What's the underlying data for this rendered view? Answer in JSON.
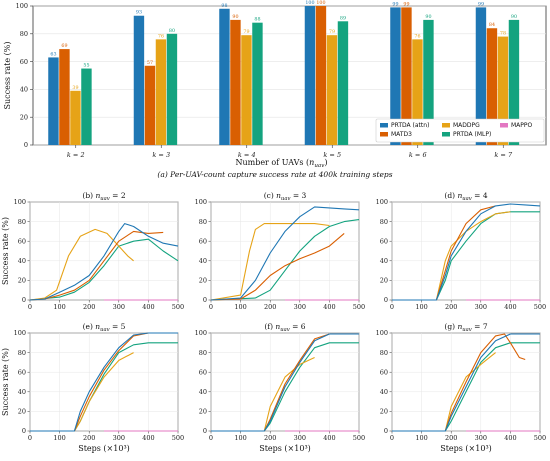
{
  "colors": {
    "PRTDA (attn)": "#1f77b4",
    "MATD3": "#d95f02",
    "MADDPG": "#e6a317",
    "PRTDA (MLP)": "#14a37f",
    "MAPPO": "#e377c2"
  },
  "top_caption": "(a) Per-UAV-count capture success rate at 400k training steps",
  "chart_data": [
    {
      "type": "bar",
      "categories": [
        "k = 2",
        "k = 3",
        "k = 4",
        "k = 5",
        "k = 6",
        "k = 7"
      ],
      "xlabel": "Number of UAVs (n_uav)",
      "ylabel": "Success rate (%)",
      "ylim": [
        0,
        100
      ],
      "yticks": [
        0,
        20,
        40,
        60,
        80,
        100
      ],
      "grid": true,
      "legend_position": "lower-right",
      "series": [
        {
          "name": "PRTDA (attn)",
          "values": [
            63,
            93,
            98,
            100,
            99,
            99
          ]
        },
        {
          "name": "MATD3",
          "values": [
            69,
            57,
            90,
            100,
            99,
            84
          ]
        },
        {
          "name": "MADDPG",
          "values": [
            39,
            76,
            79,
            79,
            76,
            78
          ]
        },
        {
          "name": "PRTDA (MLP)",
          "values": [
            55,
            80,
            88,
            89,
            90,
            90
          ]
        },
        {
          "name": "MAPPO",
          "values": [
            0,
            0,
            0,
            0,
            0,
            0
          ]
        }
      ]
    },
    {
      "type": "line",
      "title": "(b) n_uav = 2",
      "xlim": [
        0,
        500
      ],
      "ylim": [
        0,
        100
      ],
      "xlabel": "",
      "ylabel": "Success rate (%)",
      "series": [
        {
          "name": "PRTDA (attn)",
          "x": [
            0,
            50,
            100,
            150,
            200,
            250,
            300,
            320,
            350,
            400,
            450,
            500
          ],
          "values": [
            0,
            1,
            8,
            15,
            25,
            45,
            70,
            78,
            75,
            65,
            58,
            55
          ]
        },
        {
          "name": "MATD3",
          "x": [
            0,
            50,
            100,
            150,
            200,
            250,
            300,
            350,
            400,
            450
          ],
          "values": [
            0,
            1,
            5,
            10,
            20,
            40,
            60,
            70,
            68,
            69
          ]
        },
        {
          "name": "MADDPG",
          "x": [
            0,
            50,
            90,
            130,
            170,
            220,
            260,
            300,
            330,
            350
          ],
          "values": [
            0,
            2,
            10,
            45,
            65,
            72,
            68,
            55,
            45,
            40
          ]
        },
        {
          "name": "PRTDA (MLP)",
          "x": [
            0,
            100,
            150,
            200,
            250,
            300,
            350,
            400,
            450,
            500
          ],
          "values": [
            0,
            3,
            8,
            18,
            35,
            55,
            60,
            62,
            50,
            40
          ]
        },
        {
          "name": "MAPPO",
          "x": [
            250,
            500
          ],
          "values": [
            0,
            0
          ]
        }
      ]
    },
    {
      "type": "line",
      "title": "(c) n_uav = 3",
      "xlim": [
        0,
        500
      ],
      "ylim": [
        0,
        100
      ],
      "xlabel": "",
      "ylabel": "",
      "series": [
        {
          "name": "PRTDA (attn)",
          "x": [
            0,
            100,
            150,
            200,
            250,
            300,
            350,
            400,
            450,
            500
          ],
          "values": [
            0,
            2,
            20,
            48,
            70,
            85,
            95,
            94,
            93,
            92
          ]
        },
        {
          "name": "MATD3",
          "x": [
            0,
            100,
            150,
            200,
            250,
            300,
            350,
            400,
            450
          ],
          "values": [
            0,
            1,
            10,
            25,
            35,
            42,
            48,
            55,
            68
          ]
        },
        {
          "name": "MADDPG",
          "x": [
            0,
            100,
            130,
            150,
            180,
            220,
            300,
            350,
            400
          ],
          "values": [
            0,
            5,
            50,
            72,
            78,
            78,
            78,
            78,
            76
          ]
        },
        {
          "name": "PRTDA (MLP)",
          "x": [
            0,
            150,
            200,
            250,
            300,
            350,
            400,
            450,
            500
          ],
          "values": [
            0,
            2,
            10,
            30,
            50,
            65,
            75,
            80,
            82
          ]
        },
        {
          "name": "MAPPO",
          "x": [
            250,
            500
          ],
          "values": [
            0,
            0
          ]
        }
      ]
    },
    {
      "type": "line",
      "title": "(d) n_uav = 4",
      "xlim": [
        0,
        500
      ],
      "ylim": [
        0,
        100
      ],
      "xlabel": "",
      "ylabel": "",
      "series": [
        {
          "name": "PRTDA (attn)",
          "x": [
            0,
            150,
            180,
            200,
            250,
            300,
            350,
            400,
            450,
            500
          ],
          "values": [
            0,
            0,
            25,
            45,
            70,
            88,
            96,
            98,
            97,
            96
          ]
        },
        {
          "name": "MATD3",
          "x": [
            0,
            150,
            180,
            200,
            250,
            300,
            350
          ],
          "values": [
            0,
            0,
            30,
            50,
            78,
            92,
            96
          ]
        },
        {
          "name": "MADDPG",
          "x": [
            0,
            150,
            180,
            200,
            250,
            300,
            350,
            400
          ],
          "values": [
            0,
            0,
            40,
            55,
            70,
            80,
            88,
            90
          ]
        },
        {
          "name": "PRTDA (MLP)",
          "x": [
            0,
            150,
            180,
            200,
            250,
            300,
            350,
            400,
            450,
            500
          ],
          "values": [
            0,
            0,
            20,
            40,
            60,
            78,
            88,
            90,
            90,
            90
          ]
        },
        {
          "name": "MAPPO",
          "x": [
            250,
            500
          ],
          "values": [
            0,
            0
          ]
        }
      ]
    },
    {
      "type": "line",
      "title": "(e) n_uav = 5",
      "xlim": [
        0,
        500
      ],
      "ylim": [
        0,
        100
      ],
      "xlabel": "Steps (×10³)",
      "ylabel": "Success rate (%)",
      "series": [
        {
          "name": "PRTDA (attn)",
          "x": [
            0,
            150,
            170,
            200,
            250,
            300,
            350,
            400,
            450,
            500
          ],
          "values": [
            0,
            0,
            20,
            40,
            65,
            85,
            98,
            100,
            100,
            100
          ]
        },
        {
          "name": "MATD3",
          "x": [
            0,
            150,
            170,
            200,
            250,
            300,
            350,
            400
          ],
          "values": [
            0,
            0,
            15,
            35,
            62,
            82,
            97,
            100
          ]
        },
        {
          "name": "MADDPG",
          "x": [
            0,
            150,
            170,
            200,
            250,
            300,
            350
          ],
          "values": [
            0,
            0,
            10,
            30,
            55,
            72,
            80
          ]
        },
        {
          "name": "PRTDA (MLP)",
          "x": [
            0,
            150,
            170,
            200,
            250,
            300,
            350,
            400,
            450,
            500
          ],
          "values": [
            0,
            0,
            10,
            30,
            58,
            80,
            88,
            90,
            90,
            90
          ]
        },
        {
          "name": "MAPPO",
          "x": [
            250,
            500
          ],
          "values": [
            0,
            0
          ]
        }
      ]
    },
    {
      "type": "line",
      "title": "(f) n_uav = 6",
      "xlim": [
        0,
        500
      ],
      "ylim": [
        0,
        100
      ],
      "xlabel": "Steps (×10³)",
      "ylabel": "",
      "series": [
        {
          "name": "PRTDA (attn)",
          "x": [
            0,
            180,
            200,
            250,
            300,
            350,
            400,
            450,
            500
          ],
          "values": [
            0,
            0,
            10,
            45,
            70,
            92,
            99,
            99,
            99
          ]
        },
        {
          "name": "MATD3",
          "x": [
            0,
            180,
            200,
            250,
            300,
            350,
            400
          ],
          "values": [
            0,
            0,
            12,
            48,
            72,
            94,
            99
          ]
        },
        {
          "name": "MADDPG",
          "x": [
            0,
            180,
            200,
            250,
            300,
            350
          ],
          "values": [
            0,
            0,
            25,
            55,
            68,
            75
          ]
        },
        {
          "name": "PRTDA (MLP)",
          "x": [
            0,
            180,
            200,
            250,
            300,
            350,
            400,
            450,
            500
          ],
          "values": [
            0,
            0,
            8,
            40,
            65,
            85,
            90,
            90,
            90
          ]
        },
        {
          "name": "MAPPO",
          "x": [
            250,
            500
          ],
          "values": [
            0,
            0
          ]
        }
      ]
    },
    {
      "type": "line",
      "title": "(g) n_uav = 7",
      "xlim": [
        0,
        500
      ],
      "ylim": [
        0,
        100
      ],
      "xlabel": "Steps (×10³)",
      "ylabel": "",
      "series": [
        {
          "name": "PRTDA (attn)",
          "x": [
            0,
            180,
            200,
            250,
            300,
            350,
            400,
            450,
            500
          ],
          "values": [
            0,
            0,
            15,
            45,
            75,
            92,
            99,
            99,
            99
          ]
        },
        {
          "name": "MATD3",
          "x": [
            0,
            180,
            200,
            250,
            300,
            350,
            380,
            400,
            430,
            450
          ],
          "values": [
            0,
            0,
            18,
            50,
            80,
            97,
            99,
            90,
            75,
            73
          ]
        },
        {
          "name": "MADDPG",
          "x": [
            0,
            180,
            200,
            250,
            300,
            350
          ],
          "values": [
            0,
            0,
            25,
            55,
            68,
            80
          ]
        },
        {
          "name": "PRTDA (MLP)",
          "x": [
            0,
            180,
            200,
            250,
            300,
            350,
            400,
            450,
            500
          ],
          "values": [
            0,
            0,
            10,
            40,
            70,
            85,
            90,
            90,
            90
          ]
        },
        {
          "name": "MAPPO",
          "x": [
            250,
            500
          ],
          "values": [
            0,
            0
          ]
        }
      ]
    }
  ],
  "legend_labels": [
    "PRTDA (attn)",
    "MATD3",
    "MADDPG",
    "PRTDA (MLP)",
    "MAPPO"
  ]
}
